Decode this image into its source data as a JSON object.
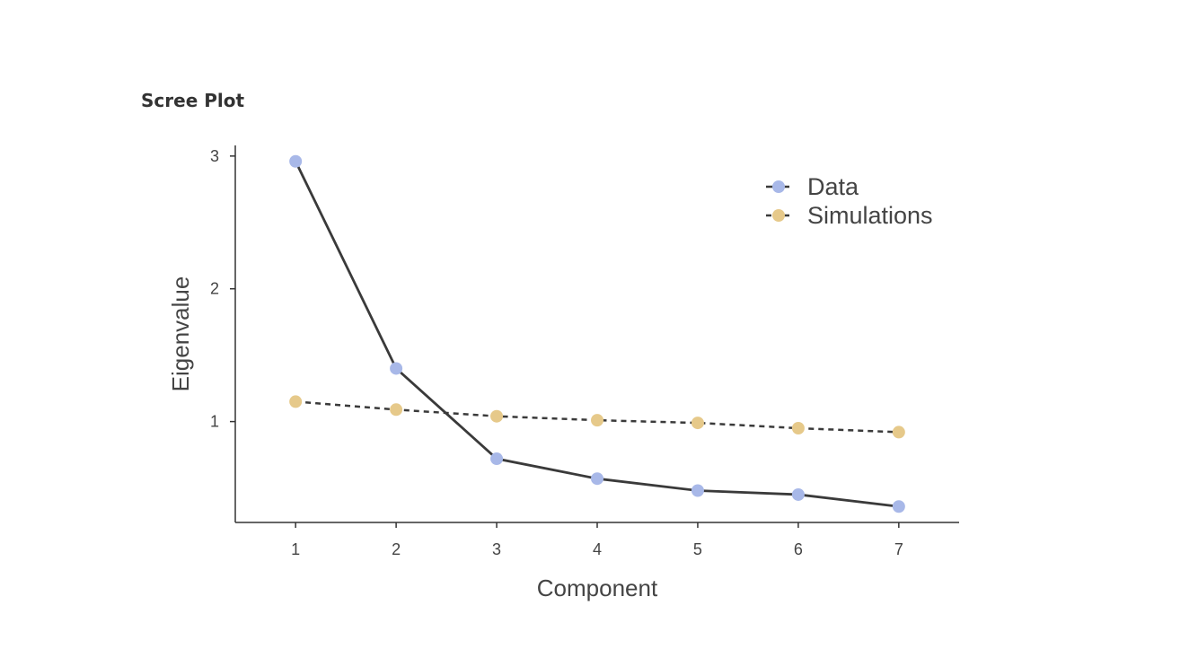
{
  "title": "Scree Plot",
  "chart_data": {
    "type": "line",
    "title": "Scree Plot",
    "xlabel": "Component",
    "ylabel": "Eigenvalue",
    "x": [
      1,
      2,
      3,
      4,
      5,
      6,
      7
    ],
    "xticks": [
      "1",
      "2",
      "3",
      "4",
      "5",
      "6",
      "7"
    ],
    "yticks": [
      "1",
      "2",
      "3"
    ],
    "ylim": [
      0.24,
      3.08
    ],
    "xlim": [
      0.4,
      7.6
    ],
    "grid": false,
    "legend_position": "top-right",
    "series": [
      {
        "name": "Data",
        "values": [
          2.96,
          1.4,
          0.72,
          0.57,
          0.48,
          0.45,
          0.36
        ],
        "color": "#a8b8e8",
        "line": "solid"
      },
      {
        "name": "Simulations",
        "values": [
          1.15,
          1.09,
          1.04,
          1.01,
          0.99,
          0.95,
          0.92
        ],
        "color": "#e6c98a",
        "line": "dashed"
      }
    ]
  }
}
